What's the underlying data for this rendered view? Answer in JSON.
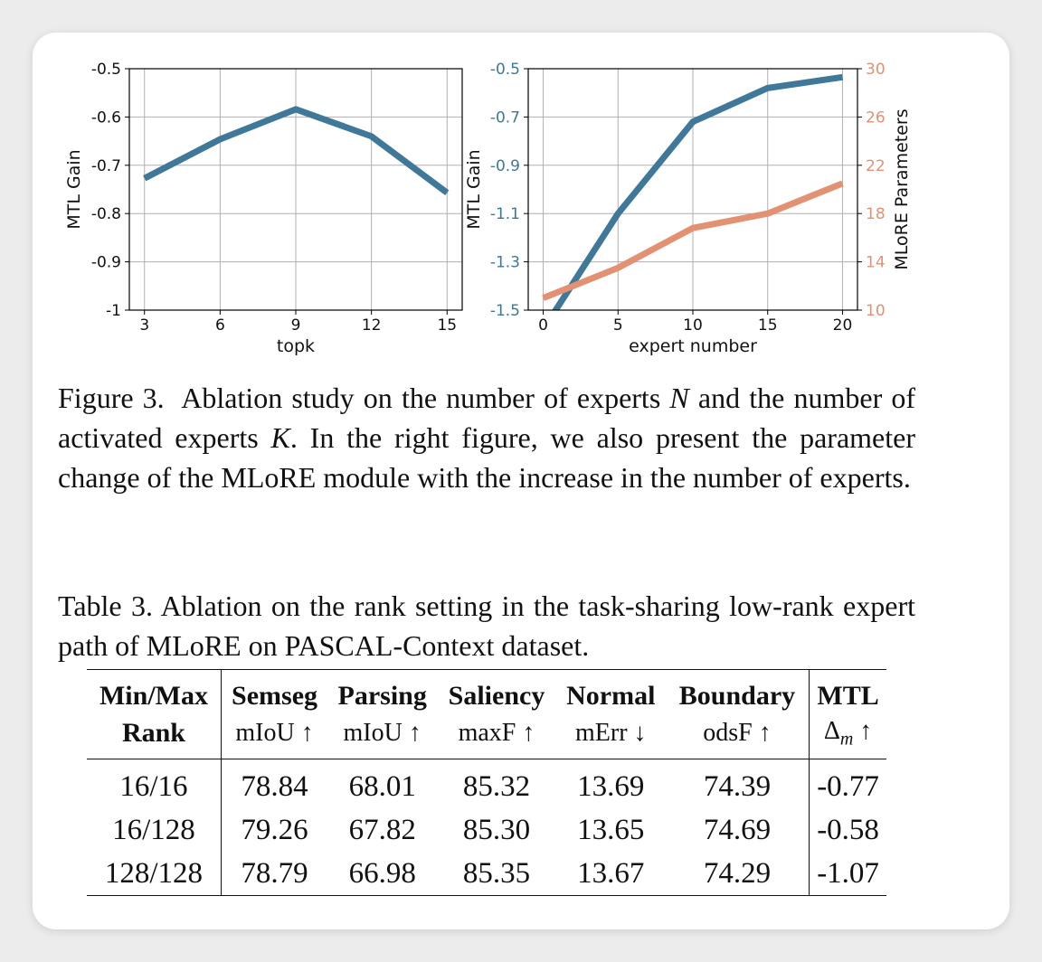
{
  "colors": {
    "blue": "#3f7898",
    "orange": "#e39173",
    "grid": "#b0b0b0"
  },
  "chart_data": [
    {
      "type": "line",
      "x": [
        3,
        6,
        9,
        12,
        15
      ],
      "series": [
        {
          "values": [
            -0.727,
            -0.646,
            -0.584,
            -0.64,
            -0.757
          ]
        }
      ],
      "xlabel": "topk",
      "ylabel": "MTL Gain",
      "xlim": [
        2.4,
        15.6
      ],
      "ylim": [
        -1,
        -0.5
      ],
      "xticks": [
        "3",
        "6",
        "9",
        "12",
        "15"
      ],
      "yticks": [
        "-0.5",
        "-0.6",
        "-0.7",
        "-0.8",
        "-0.9",
        "-1"
      ],
      "grid": true
    },
    {
      "type": "line",
      "x": [
        0,
        5,
        10,
        15,
        20
      ],
      "series": [
        {
          "axis": "left",
          "values": [
            -1.58,
            -1.1,
            -0.72,
            -0.58,
            -0.535
          ]
        },
        {
          "axis": "right",
          "values": [
            11.0,
            13.5,
            16.8,
            18.0,
            20.5
          ]
        }
      ],
      "xlabel": "expert number",
      "ylabel": "MTL Gain",
      "y2label": "MLoRE Parameters",
      "xlim": [
        -1,
        21
      ],
      "ylim": [
        -1.5,
        -0.5
      ],
      "y2lim": [
        10,
        30
      ],
      "xticks": [
        "0",
        "5",
        "10",
        "15",
        "20"
      ],
      "yticks": [
        "-0.5",
        "-0.7",
        "-0.9",
        "-1.1",
        "-1.3",
        "-1.5"
      ],
      "y2ticks": [
        "30",
        "26",
        "22",
        "18",
        "14",
        "10"
      ],
      "grid": true
    }
  ],
  "figure_caption": {
    "label": "Figure 3.",
    "text_1": "Ablation study on the number of experts",
    "var_n": "N",
    "text_2": "and the number of activated experts",
    "var_k": "K",
    "text_3": ". In the right figure, we also present the parameter change of the MLoRE module with the increase in the number of experts."
  },
  "table_caption": "Table 3. Ablation on the rank setting in the task-sharing low-rank expert path of MLoRE on PASCAL-Context dataset.",
  "table": {
    "header_row1": [
      "Min/Max",
      "Semseg",
      "Parsing",
      "Saliency",
      "Normal",
      "Boundary",
      "MTL"
    ],
    "header_row2": [
      "Rank",
      "mIoU ↑",
      "mIoU ↑",
      "maxF ↑",
      "mErr ↓",
      "odsF ↑"
    ],
    "mtl_metric": {
      "delta": "Δ",
      "sub": "m",
      "arrow": "↑"
    },
    "rows": [
      [
        "16/16",
        "78.84",
        "68.01",
        "85.32",
        "13.69",
        "74.39",
        "-0.77"
      ],
      [
        "16/128",
        "79.26",
        "67.82",
        "85.30",
        "13.65",
        "74.69",
        "-0.58"
      ],
      [
        "128/128",
        "78.79",
        "66.98",
        "85.35",
        "13.67",
        "74.29",
        "-1.07"
      ]
    ]
  }
}
